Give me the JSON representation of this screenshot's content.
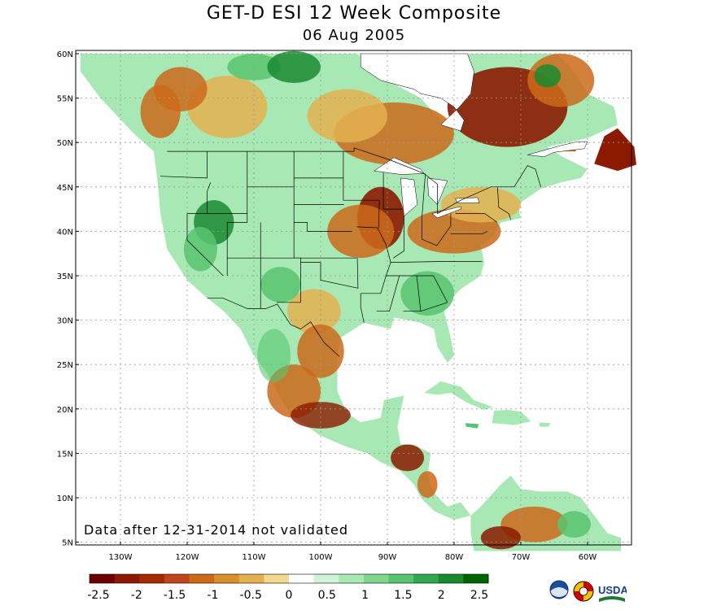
{
  "title": "GET-D ESI 12 Week Composite",
  "date": "06 Aug 2005",
  "note": "Data after 12-31-2014 not validated",
  "lon_labels": [
    "130W",
    "120W",
    "110W",
    "100W",
    "90W",
    "80W",
    "70W",
    "60W"
  ],
  "lat_labels": [
    "60N",
    "55N",
    "50N",
    "45N",
    "40N",
    "35N",
    "30N",
    "25N",
    "20N",
    "15N",
    "10N",
    "5N"
  ],
  "colorbar": {
    "labels": [
      "-2.5",
      "-2",
      "-1.5",
      "-1",
      "-0.5",
      "0",
      "0.5",
      "1",
      "1.5",
      "2",
      "2.5"
    ],
    "colors": [
      "#6b0000",
      "#8b1a00",
      "#a52a00",
      "#c0451a",
      "#cc6a1a",
      "#d9902a",
      "#e4b050",
      "#f0d890",
      "#ffffff",
      "#d0f2d8",
      "#a8e8b4",
      "#80d890",
      "#58c470",
      "#30a850",
      "#1a8a30",
      "#006400"
    ]
  },
  "legend_colors": {
    "severe_dry": "#8b1a00",
    "dry": "#cc6a1a",
    "mild_dry": "#e4b050",
    "neutral": "#ffffff",
    "mild_wet": "#a8e8b4",
    "wet": "#58c470",
    "very_wet": "#1a8a30",
    "water": "#ffffff"
  },
  "logos": {
    "noaa": "NOAA",
    "umd": "UMD",
    "usda": "USDA"
  }
}
